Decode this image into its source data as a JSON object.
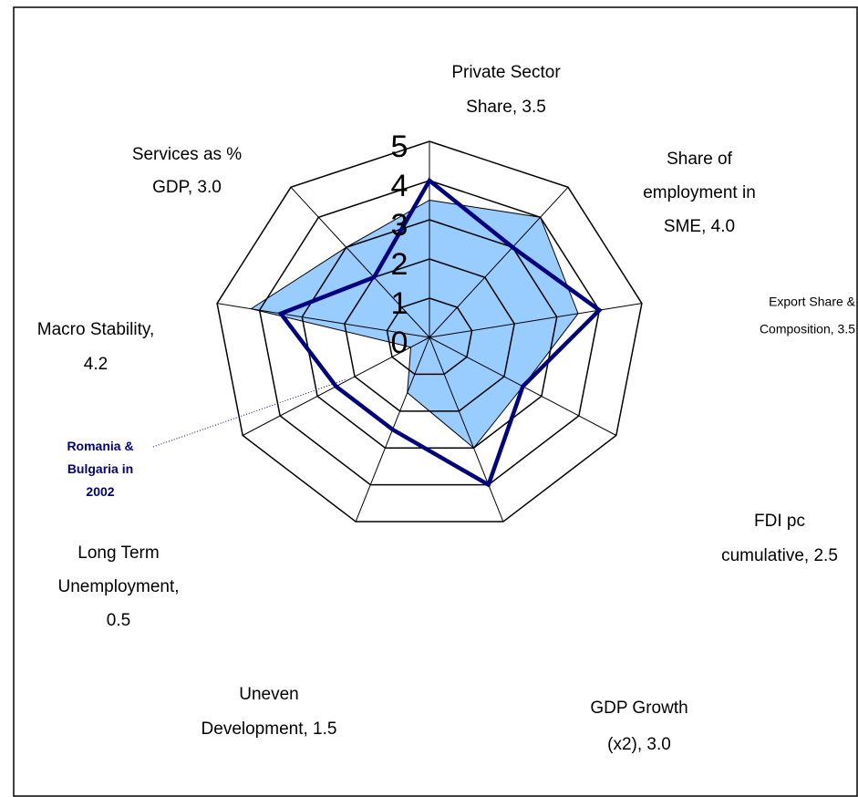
{
  "chart_data": {
    "type": "radar",
    "categories": [
      [
        "Private Sector",
        "Share, 3.5"
      ],
      [
        "Share of",
        "employment in",
        "SME, 4.0"
      ],
      [
        "Export Share &",
        "Composition, 3.5"
      ],
      [
        "FDI pc",
        "cumulative, 2.5"
      ],
      [
        "GDP Growth",
        "(x2), 3.0"
      ],
      [
        "Uneven",
        "Development, 1.5"
      ],
      [
        "Long Term",
        "Unemployment,",
        "0.5"
      ],
      [
        "Macro Stability,",
        "4.2"
      ],
      [
        "Services as %",
        "GDP, 3.0"
      ]
    ],
    "series": [
      {
        "color": "#99ccff",
        "values": [
          3.5,
          4.0,
          3.5,
          2.5,
          3.0,
          1.5,
          0.5,
          4.2,
          3.0
        ]
      },
      {
        "name": "Romania & Bulgaria in 2002",
        "color": "#000080",
        "values": [
          4.0,
          3.0,
          4.0,
          2.5,
          4.0,
          2.5,
          2.5,
          3.5,
          2.0
        ]
      }
    ],
    "rlim": [
      0,
      5
    ],
    "rticks": [
      0,
      1,
      2,
      3,
      4,
      5
    ]
  }
}
